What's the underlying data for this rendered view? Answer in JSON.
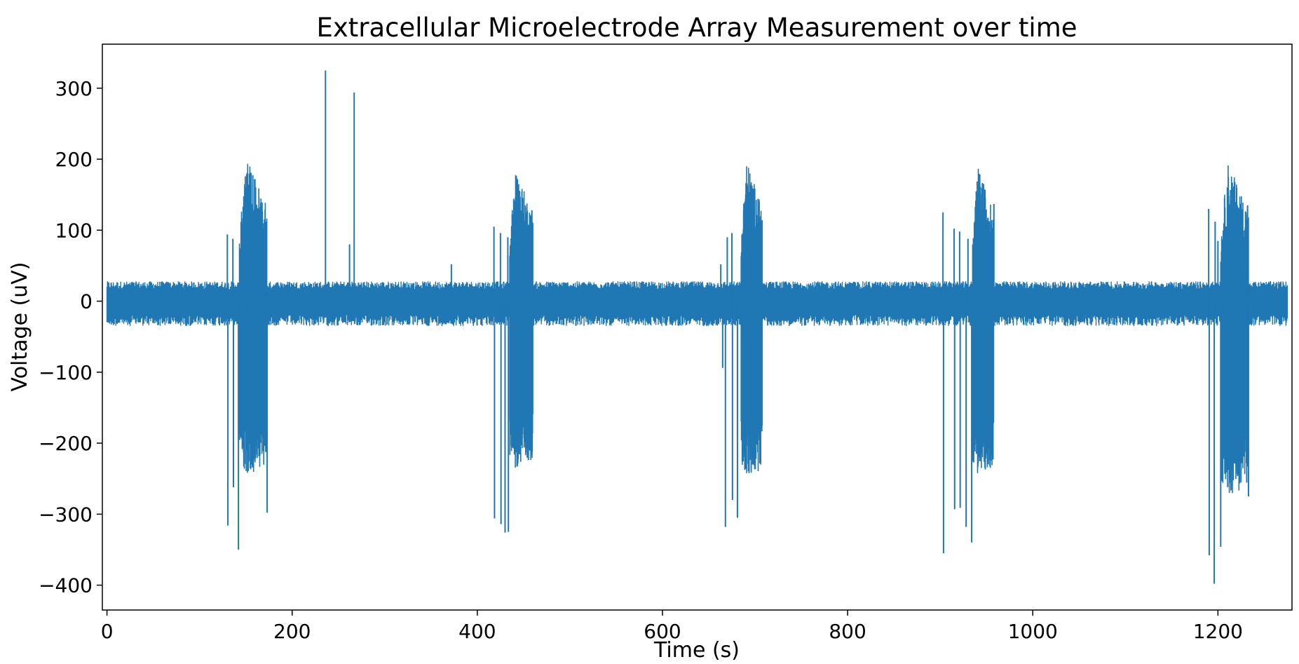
{
  "chart_data": {
    "type": "line",
    "title": "Extracellular Microelectrode Array Measurement over time",
    "xlabel": "Time (s)",
    "ylabel": "Voltage (uV)",
    "xlim": [
      -5,
      1280
    ],
    "ylim": [
      -435,
      362
    ],
    "xticks": [
      0,
      200,
      400,
      600,
      800,
      1000,
      1200
    ],
    "yticks": [
      -400,
      -300,
      -200,
      -100,
      0,
      100,
      200,
      300
    ],
    "xtick_labels": [
      "0",
      "200",
      "400",
      "600",
      "800",
      "1000",
      "1200"
    ],
    "ytick_labels": [
      "−400",
      "−300",
      "−200",
      "−100",
      "0",
      "100",
      "200",
      "300"
    ],
    "grid": false,
    "line_color": "#1f77b4",
    "series": [
      {
        "duration_s": 1275,
        "baseline_noise_uV": [
          -35,
          28
        ],
        "bursts": [
          {
            "start": 143,
            "end": 173,
            "max_uV": 205,
            "min_uV": -245
          },
          {
            "start": 435,
            "end": 460,
            "max_uV": 188,
            "min_uV": -235
          },
          {
            "start": 685,
            "end": 708,
            "max_uV": 200,
            "min_uV": -250
          },
          {
            "start": 935,
            "end": 958,
            "max_uV": 190,
            "min_uV": -245
          },
          {
            "start": 1203,
            "end": 1233,
            "max_uV": 197,
            "min_uV": -275
          }
        ],
        "spikes": [
          {
            "x": 130,
            "y": 94
          },
          {
            "x": 130.6,
            "y": -316
          },
          {
            "x": 136,
            "y": 88
          },
          {
            "x": 136.6,
            "y": -262
          },
          {
            "x": 142,
            "y": -350
          },
          {
            "x": 172,
            "y": 64
          },
          {
            "x": 173,
            "y": -298
          },
          {
            "x": 236,
            "y": 325
          },
          {
            "x": 262,
            "y": 80
          },
          {
            "x": 267,
            "y": 294
          },
          {
            "x": 372,
            "y": 52
          },
          {
            "x": 418,
            "y": 105
          },
          {
            "x": 418.6,
            "y": -306
          },
          {
            "x": 425,
            "y": 96
          },
          {
            "x": 425.6,
            "y": -314
          },
          {
            "x": 430,
            "y": -326
          },
          {
            "x": 433,
            "y": 90
          },
          {
            "x": 433.6,
            "y": -325
          },
          {
            "x": 459,
            "y": 128
          },
          {
            "x": 663,
            "y": 52
          },
          {
            "x": 665,
            "y": -94
          },
          {
            "x": 668,
            "y": -318
          },
          {
            "x": 670,
            "y": 90
          },
          {
            "x": 675,
            "y": 96
          },
          {
            "x": 675.6,
            "y": -280
          },
          {
            "x": 681,
            "y": -305
          },
          {
            "x": 707,
            "y": 112
          },
          {
            "x": 903,
            "y": 125
          },
          {
            "x": 903.6,
            "y": -355
          },
          {
            "x": 915,
            "y": 102
          },
          {
            "x": 915.6,
            "y": -293
          },
          {
            "x": 921,
            "y": 98
          },
          {
            "x": 921.6,
            "y": -291
          },
          {
            "x": 928,
            "y": -318
          },
          {
            "x": 930,
            "y": 88
          },
          {
            "x": 934,
            "y": -340
          },
          {
            "x": 958,
            "y": 137
          },
          {
            "x": 1190,
            "y": 130
          },
          {
            "x": 1190.6,
            "y": -358
          },
          {
            "x": 1196,
            "y": -398
          },
          {
            "x": 1197,
            "y": 112
          },
          {
            "x": 1200,
            "y": 85
          },
          {
            "x": 1203,
            "y": -346
          },
          {
            "x": 1232,
            "y": 135
          },
          {
            "x": 1233,
            "y": -275
          }
        ]
      }
    ]
  }
}
